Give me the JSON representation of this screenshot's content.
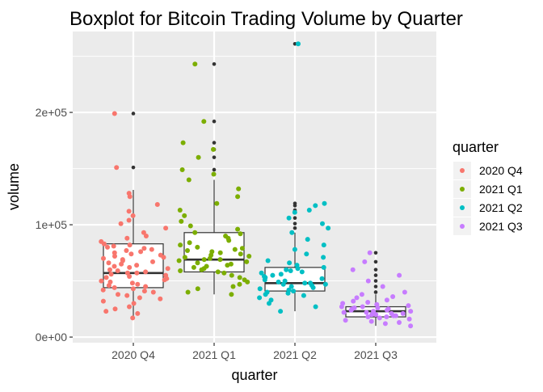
{
  "chart_data": {
    "type": "boxplot",
    "title": "Boxplot for Bitcoin Trading Volume by Quarter",
    "xlabel": "quarter",
    "ylabel": "volume",
    "categories": [
      "2020 Q4",
      "2021 Q1",
      "2021 Q2",
      "2021 Q3"
    ],
    "y_ticks": [
      {
        "value": 0,
        "label": "0e+00"
      },
      {
        "value": 100000,
        "label": "1e+05"
      },
      {
        "value": 200000,
        "label": "2e+05"
      }
    ],
    "ylim": [
      -5000,
      272000
    ],
    "grid": true,
    "legend": {
      "title": "quarter",
      "position": "right",
      "entries": [
        {
          "label": "2020 Q4",
          "color": "#F8766D"
        },
        {
          "label": "2021 Q1",
          "color": "#7CAE00"
        },
        {
          "label": "2021 Q2",
          "color": "#00BFC4"
        },
        {
          "label": "2021 Q3",
          "color": "#C77CFF"
        }
      ]
    },
    "boxes": [
      {
        "name": "2020 Q4",
        "whisker_low": 17000,
        "q1": 44000,
        "median": 57000,
        "q3": 83000,
        "whisker_high": 131000,
        "outliers": [
          151000,
          199000
        ]
      },
      {
        "name": "2021 Q1",
        "whisker_low": 38000,
        "q1": 58000,
        "median": 69000,
        "q3": 93000,
        "whisker_high": 140000,
        "outliers": [
          145000,
          149000,
          160000,
          167000,
          173000,
          192000,
          243000
        ]
      },
      {
        "name": "2021 Q2",
        "whisker_low": 23000,
        "q1": 41000,
        "median": 48000,
        "q3": 62000,
        "whisker_high": 93000,
        "outliers": [
          97000,
          101000,
          106000,
          111000,
          113000,
          117000,
          119000,
          261000
        ]
      },
      {
        "name": "2021 Q3",
        "whisker_low": 10000,
        "q1": 18000,
        "median": 23000,
        "q3": 27000,
        "whisker_high": 38000,
        "outliers": [
          40000,
          45000,
          50000,
          55000,
          60000,
          67000,
          75000
        ]
      }
    ],
    "points": [
      {
        "group": "2020 Q4",
        "y": [
          17000,
          21000,
          23000,
          25000,
          27000,
          30000,
          32000,
          34000,
          35000,
          37000,
          38000,
          40000,
          41000,
          42000,
          43000,
          44000,
          45000,
          46000,
          47000,
          48000,
          49000,
          50000,
          51000,
          52000,
          53000,
          54000,
          55000,
          56000,
          57000,
          57000,
          58000,
          59000,
          60000,
          61000,
          62000,
          63000,
          64000,
          65000,
          66000,
          67000,
          68000,
          69000,
          70000,
          71000,
          72000,
          73000,
          74000,
          75000,
          76000,
          77000,
          78000,
          79000,
          80000,
          81000,
          82000,
          83000,
          85000,
          88000,
          90000,
          93000,
          97000,
          101000,
          104000,
          108000,
          112000,
          118000,
          125000,
          128000,
          151000,
          199000
        ]
      },
      {
        "group": "2021 Q1",
        "y": [
          38000,
          40000,
          43000,
          45000,
          47000,
          49000,
          51000,
          53000,
          55000,
          57000,
          58000,
          59000,
          60000,
          61000,
          62000,
          63000,
          64000,
          65000,
          66000,
          67000,
          68000,
          69000,
          69000,
          70000,
          71000,
          72000,
          73000,
          74000,
          75000,
          76000,
          77000,
          78000,
          79000,
          80000,
          82000,
          84000,
          86000,
          88000,
          90000,
          92000,
          93000,
          96000,
          99000,
          103000,
          108000,
          113000,
          119000,
          125000,
          132000,
          140000,
          145000,
          149000,
          160000,
          167000,
          173000,
          192000,
          243000
        ]
      },
      {
        "group": "2021 Q2",
        "y": [
          23000,
          27000,
          30000,
          33000,
          35000,
          37000,
          38000,
          39000,
          40000,
          41000,
          42000,
          43000,
          44000,
          45000,
          46000,
          47000,
          47000,
          48000,
          48000,
          49000,
          50000,
          51000,
          52000,
          53000,
          54000,
          55000,
          56000,
          57000,
          58000,
          59000,
          60000,
          61000,
          62000,
          64000,
          66000,
          68000,
          71000,
          74000,
          78000,
          82000,
          87000,
          93000,
          97000,
          101000,
          106000,
          111000,
          113000,
          117000,
          119000,
          261000
        ]
      },
      {
        "group": "2021 Q3",
        "y": [
          10000,
          12000,
          13000,
          14000,
          15000,
          16000,
          17000,
          18000,
          18000,
          19000,
          19000,
          20000,
          20000,
          21000,
          21000,
          22000,
          22000,
          23000,
          23000,
          24000,
          24000,
          25000,
          25000,
          26000,
          26000,
          27000,
          27000,
          28000,
          29000,
          30000,
          31000,
          32000,
          33000,
          35000,
          36000,
          38000,
          40000,
          45000,
          50000,
          55000,
          60000,
          67000,
          75000
        ]
      }
    ]
  }
}
